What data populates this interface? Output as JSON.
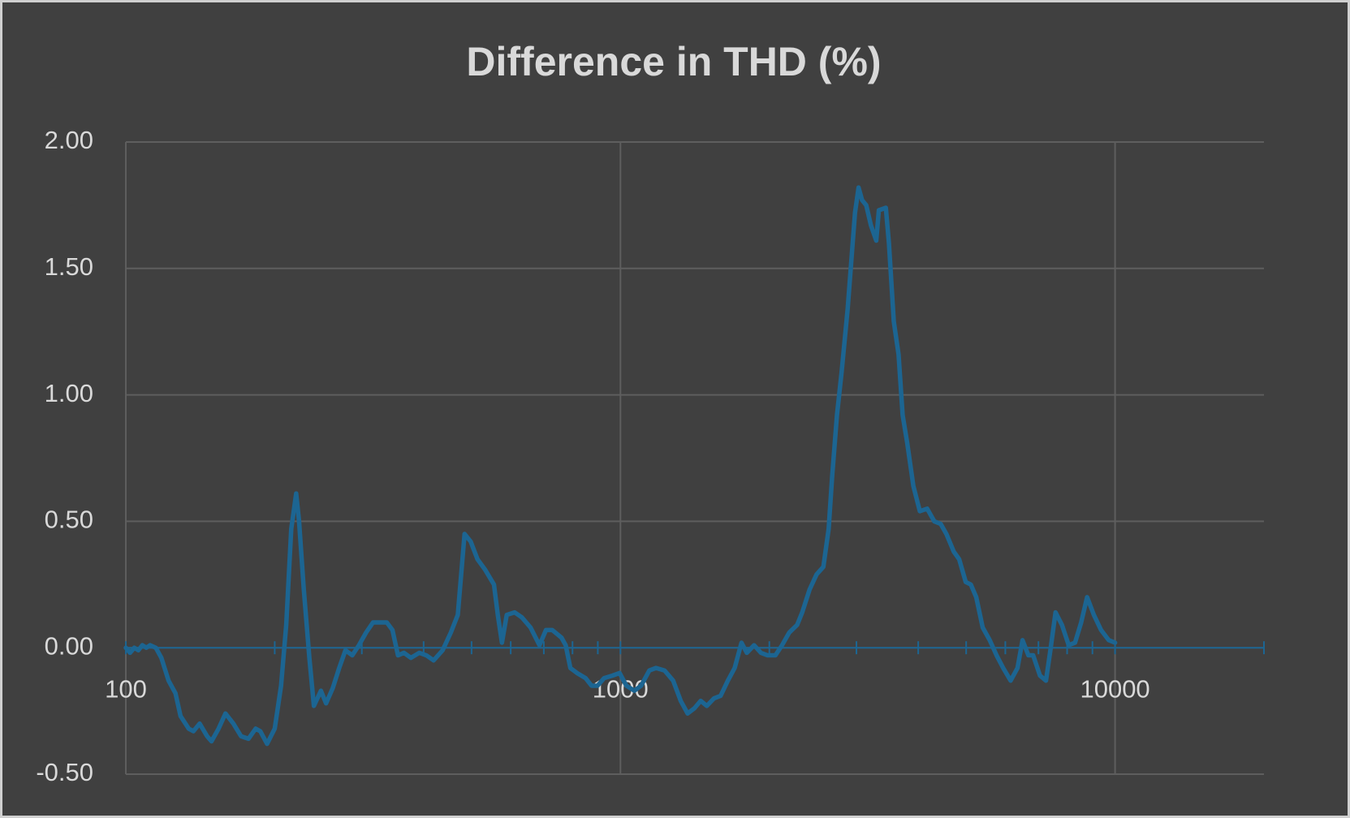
{
  "chart_data": {
    "type": "line",
    "title": "Difference in THD (%)",
    "x": [
      100,
      102,
      104,
      106,
      108,
      110,
      112,
      115,
      118,
      122,
      126,
      129,
      134,
      137,
      141,
      146,
      149,
      154,
      159,
      165,
      171,
      177,
      183,
      187,
      193,
      200,
      206,
      211,
      216,
      221,
      224,
      229,
      235,
      240,
      248,
      254,
      262,
      270,
      278,
      287,
      296,
      306,
      316,
      326,
      337,
      346,
      355,
      365,
      377,
      392,
      405,
      419,
      437,
      454,
      469,
      484,
      498,
      514,
      532,
      555,
      565,
      576,
      589,
      611,
      632,
      658,
      686,
      707,
      728,
      760,
      775,
      792,
      817,
      850,
      874,
      899,
      927,
      964,
      996,
      1028,
      1067,
      1101,
      1144,
      1180,
      1228,
      1278,
      1324,
      1367,
      1410,
      1453,
      1495,
      1546,
      1594,
      1649,
      1702,
      1757,
      1801,
      1863,
      1923,
      1984,
      2057,
      2122,
      2194,
      2276,
      2331,
      2412,
      2492,
      2572,
      2636,
      2680,
      2740,
      2800,
      2880,
      2940,
      2980,
      3030,
      3080,
      3140,
      3210,
      3290,
      3330,
      3440,
      3490,
      3570,
      3650,
      3720,
      3800,
      3910,
      4030,
      4170,
      4310,
      4440,
      4560,
      4720,
      4840,
      4990,
      5110,
      5240,
      5400,
      5580,
      5760,
      5940,
      6150,
      6350,
      6500,
      6680,
      6830,
      7050,
      7250,
      7400,
      7580,
      7810,
      8060,
      8300,
      8540,
      8780,
      9060,
      9370,
      9710,
      10000
    ],
    "series": [
      {
        "name": "Difference in THD",
        "color": "#1c6592",
        "values": [
          0.0,
          -0.02,
          0.0,
          -0.01,
          0.01,
          0.0,
          0.01,
          0.0,
          -0.04,
          -0.13,
          -0.18,
          -0.27,
          -0.32,
          -0.33,
          -0.3,
          -0.35,
          -0.37,
          -0.32,
          -0.26,
          -0.3,
          -0.35,
          -0.36,
          -0.32,
          -0.33,
          -0.38,
          -0.32,
          -0.15,
          0.09,
          0.47,
          0.61,
          0.5,
          0.23,
          -0.04,
          -0.23,
          -0.17,
          -0.22,
          -0.16,
          -0.08,
          -0.01,
          -0.03,
          0.01,
          0.06,
          0.1,
          0.1,
          0.1,
          0.07,
          -0.03,
          -0.02,
          -0.04,
          -0.02,
          -0.03,
          -0.05,
          -0.01,
          0.06,
          0.13,
          0.45,
          0.42,
          0.35,
          0.31,
          0.25,
          0.13,
          0.02,
          0.13,
          0.14,
          0.12,
          0.08,
          0.01,
          0.07,
          0.07,
          0.04,
          0.01,
          -0.08,
          -0.1,
          -0.12,
          -0.15,
          -0.15,
          -0.12,
          -0.11,
          -0.1,
          -0.15,
          -0.17,
          -0.15,
          -0.09,
          -0.08,
          -0.09,
          -0.13,
          -0.21,
          -0.26,
          -0.24,
          -0.21,
          -0.23,
          -0.2,
          -0.19,
          -0.13,
          -0.08,
          0.02,
          -0.02,
          0.01,
          -0.02,
          -0.03,
          -0.03,
          0.01,
          0.06,
          0.09,
          0.14,
          0.23,
          0.29,
          0.32,
          0.47,
          0.68,
          0.92,
          1.09,
          1.34,
          1.57,
          1.72,
          1.82,
          1.77,
          1.75,
          1.67,
          1.61,
          1.73,
          1.74,
          1.6,
          1.29,
          1.16,
          0.92,
          0.81,
          0.64,
          0.54,
          0.55,
          0.5,
          0.49,
          0.45,
          0.38,
          0.35,
          0.26,
          0.25,
          0.2,
          0.08,
          0.03,
          -0.03,
          -0.08,
          -0.13,
          -0.08,
          0.03,
          -0.03,
          -0.03,
          -0.11,
          -0.13,
          -0.01,
          0.14,
          0.09,
          0.01,
          0.02,
          0.1,
          0.2,
          0.13,
          0.07,
          0.03,
          0.02
        ]
      }
    ],
    "xscale": "log",
    "xlim": [
      100,
      20000
    ],
    "xticks": [
      100,
      1000,
      10000
    ],
    "xminorticks": [
      200,
      300,
      400,
      500,
      600,
      700,
      800,
      900,
      2000,
      3000,
      4000,
      5000,
      6000,
      7000,
      8000,
      9000,
      20000
    ],
    "ylim": [
      -0.5,
      2.0
    ],
    "yticks": [
      {
        "value": -0.5,
        "label": "-0.50"
      },
      {
        "value": 0,
        "label": "0.00"
      },
      {
        "value": 0.5,
        "label": "0.50"
      },
      {
        "value": 1.0,
        "label": "1.00"
      },
      {
        "value": 1.5,
        "label": "1.50"
      },
      {
        "value": 2.0,
        "label": "2.00"
      }
    ],
    "grid": true,
    "axis_color": "#1c6592"
  }
}
